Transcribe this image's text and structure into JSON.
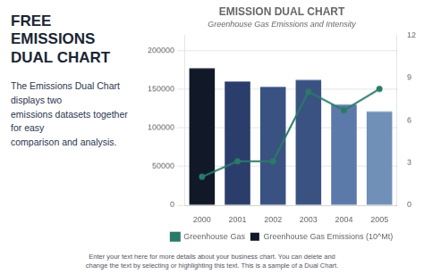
{
  "chart_data": {
    "type": "bar",
    "title": "EMISSION DUAL CHART",
    "subtitle": "Greenhouse Gas Emissions and Intensity",
    "annotations": [
      "FREE EMISSIONS\nDUAL CHART",
      "The Emissions Dual Chart displays two\nemissions datasets together for easy\ncomparison and analysis.",
      "Enter your text here for more details about your business chart. You can delete and\nchange the text by selecting or highlighting this text. This is a sample of a Dual Chart."
    ],
    "categories": [
      "2000",
      "2001",
      "2002",
      "2003",
      "2004",
      "2005"
    ],
    "series": [
      {
        "name": "Greenhouse Gas Emissions (10^Mt)",
        "type": "bar",
        "colors": [
          "#111827",
          "#2b3d6b",
          "#3a5282",
          "#3a5282",
          "#5b7aaa",
          "#7090b8"
        ],
        "values": [
          177000,
          160000,
          153000,
          162000,
          130000,
          121000
        ]
      },
      {
        "name": "Greenhouse Gas",
        "type": "line",
        "color": "#2a7a6a",
        "marker": "circle",
        "axis": "y2",
        "values": [
          2,
          3.1,
          3.1,
          8.0,
          6.7,
          8.2
        ]
      }
    ],
    "ylim": [
      0,
      220000
    ],
    "yticks": [
      0,
      50000,
      100000,
      150000,
      200000
    ],
    "y2lim": [
      0,
      12
    ],
    "y2ticks": [
      0,
      3,
      6,
      9,
      12
    ],
    "grid": true,
    "legend": "bottom"
  }
}
